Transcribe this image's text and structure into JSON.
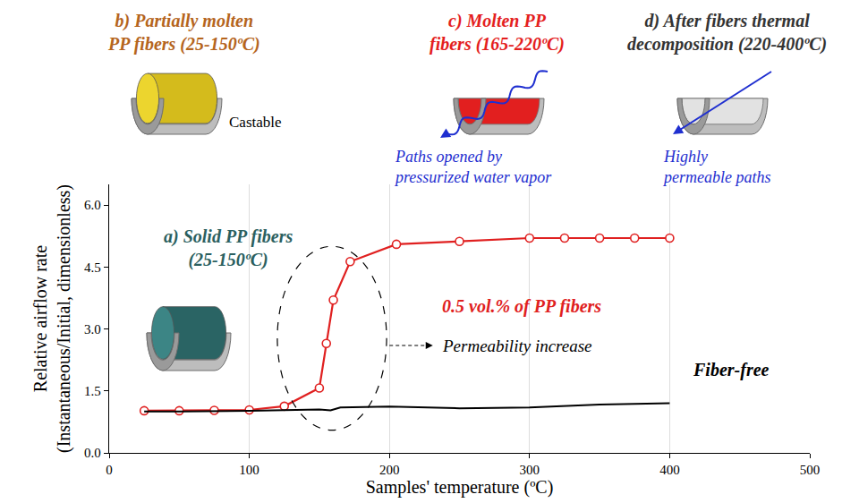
{
  "chart_data": {
    "type": "line",
    "x_label": "Samples' temperature (ºC)",
    "y_label": "Relative airflow rate\n(Instantaneous/Initial, dimensionless)",
    "xlim": [
      0,
      500
    ],
    "xticks": [
      0,
      100,
      200,
      300,
      400,
      500
    ],
    "ylim": [
      0,
      6.5
    ],
    "yticks": [
      {
        "value": 0,
        "label": "0.0"
      },
      1.5,
      {
        "value": 3,
        "label": "3.0"
      },
      4.5,
      {
        "value": 6,
        "label": "6.0"
      }
    ],
    "grid": "x",
    "series": [
      {
        "name": "0.5 vol.% of PP fibers",
        "color": "#e02020",
        "marker": "circle-open",
        "line_style": "solid",
        "x": [
          25,
          50,
          75,
          100,
          125,
          150,
          155,
          160,
          172,
          205,
          250,
          300,
          325,
          350,
          375,
          400
        ],
        "values": [
          1.02,
          1.02,
          1.03,
          1.04,
          1.13,
          1.57,
          2.65,
          3.7,
          4.63,
          5.05,
          5.12,
          5.2,
          5.2,
          5.2,
          5.2,
          5.2
        ]
      },
      {
        "name": "Fiber-free",
        "color": "#000000",
        "marker": "none",
        "line_style": "solid",
        "x": [
          25,
          50,
          100,
          150,
          158,
          165,
          200,
          250,
          300,
          350,
          400
        ],
        "values": [
          1.0,
          1.0,
          1.02,
          1.05,
          1.03,
          1.1,
          1.12,
          1.08,
          1.1,
          1.17,
          1.2
        ]
      }
    ],
    "annotations": [
      "b) Partially molten\nPP fibers (25-150ºC)",
      "c) Molten PP\nfibers (165-220ºC)",
      "d) After fibers thermal\ndecomposition (220-400ºC)",
      "Castable",
      "Paths opened by\npressurized water vapor",
      "Highly\npermeable paths",
      "a) Solid PP fibers\n(25-150ºC)",
      "Permeability increase"
    ]
  }
}
